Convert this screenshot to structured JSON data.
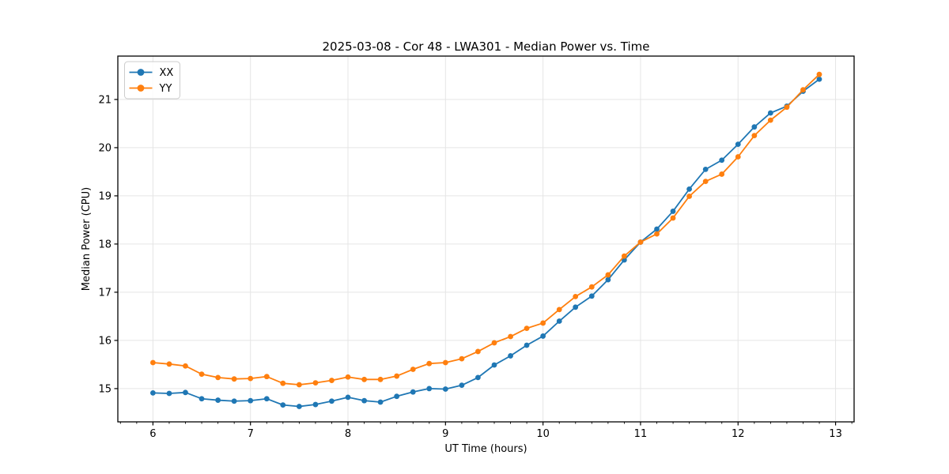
{
  "figure": {
    "background": "#ffffff",
    "spine_color": "#000000",
    "grid_color": "#e5e5e5"
  },
  "chart_data": {
    "type": "line",
    "title": "2025-03-08 - Cor 48 - LWA301 - Median Power vs. Time",
    "xlabel": "UT Time (hours)",
    "ylabel": "Median Power (CPU)",
    "xlim": [
      5.64,
      13.19
    ],
    "ylim": [
      14.31,
      21.9
    ],
    "x_ticks": [
      6,
      7,
      8,
      9,
      10,
      11,
      12,
      13
    ],
    "y_ticks": [
      15,
      16,
      17,
      18,
      19,
      20,
      21
    ],
    "x_minor_step": 0.16667,
    "grid": true,
    "legend_position": "upper-left",
    "marker": "circle",
    "x": [
      6.0,
      6.167,
      6.333,
      6.5,
      6.667,
      6.833,
      7.0,
      7.167,
      7.333,
      7.5,
      7.667,
      7.833,
      8.0,
      8.167,
      8.333,
      8.5,
      8.667,
      8.833,
      9.0,
      9.167,
      9.333,
      9.5,
      9.667,
      9.833,
      10.0,
      10.167,
      10.333,
      10.5,
      10.667,
      10.833,
      11.0,
      11.167,
      11.333,
      11.5,
      11.667,
      11.833,
      12.0,
      12.167,
      12.333,
      12.5,
      12.667,
      12.833
    ],
    "series": [
      {
        "name": "XX",
        "color": "#1f77b4",
        "values": [
          14.91,
          14.9,
          14.92,
          14.79,
          14.76,
          14.74,
          14.75,
          14.79,
          14.66,
          14.63,
          14.67,
          14.74,
          14.82,
          14.75,
          14.72,
          14.84,
          14.93,
          15.0,
          14.99,
          15.07,
          15.23,
          15.49,
          15.68,
          15.9,
          16.09,
          16.4,
          16.69,
          16.92,
          17.26,
          17.67,
          18.04,
          18.31,
          18.68,
          19.14,
          19.55,
          19.74,
          20.07,
          20.43,
          20.72,
          20.86,
          21.17,
          21.42
        ]
      },
      {
        "name": "YY",
        "color": "#ff7f0e",
        "values": [
          15.54,
          15.51,
          15.47,
          15.3,
          15.23,
          15.2,
          15.21,
          15.25,
          15.11,
          15.08,
          15.12,
          15.17,
          15.24,
          15.19,
          15.19,
          15.26,
          15.4,
          15.52,
          15.54,
          15.62,
          15.77,
          15.95,
          16.08,
          16.25,
          16.36,
          16.64,
          16.91,
          17.11,
          17.36,
          17.75,
          18.04,
          18.21,
          18.54,
          18.99,
          19.3,
          19.45,
          19.81,
          20.25,
          20.57,
          20.84,
          21.2,
          21.52
        ]
      }
    ]
  }
}
